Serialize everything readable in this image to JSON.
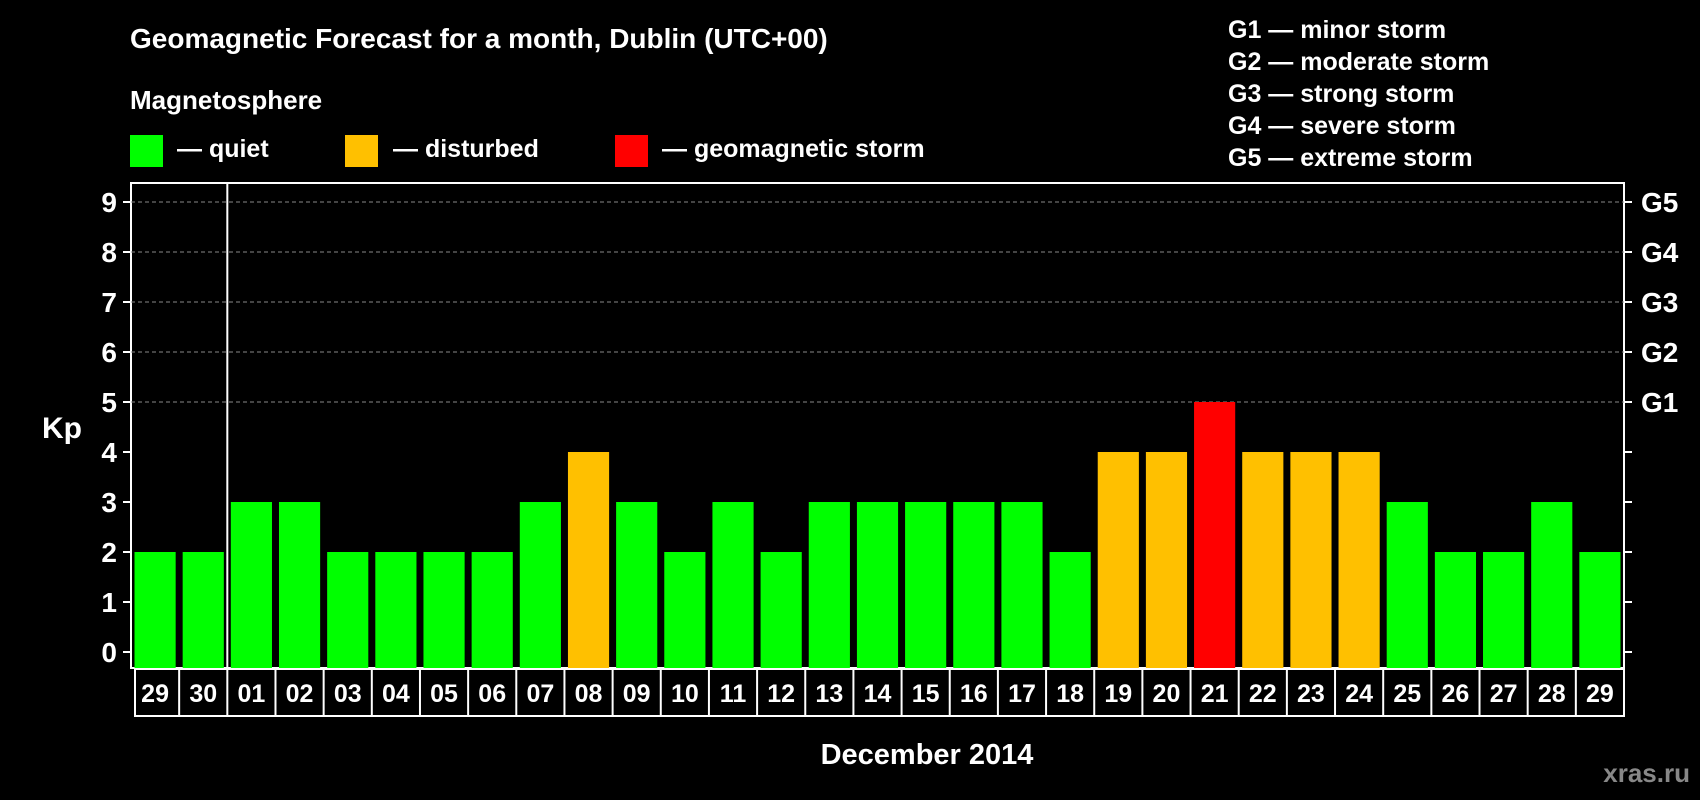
{
  "chart_data": {
    "type": "bar",
    "title": "Geomagnetic Forecast for a month, Dublin (UTC+00)",
    "legend_title": "Magnetosphere",
    "legend": [
      {
        "label": "— quiet",
        "color": "#00ff00"
      },
      {
        "label": "— disturbed",
        "color": "#ffc000"
      },
      {
        "label": "— geomagnetic storm",
        "color": "#ff0000"
      }
    ],
    "storm_scale": [
      "G1 — minor storm",
      "G2 — moderate storm",
      "G3 — strong storm",
      "G4 — severe storm",
      "G5 — extreme storm"
    ],
    "ylabel": "Kp",
    "xlabel": "December 2014",
    "ylim": [
      0,
      9
    ],
    "y_ticks": [
      "0",
      "1",
      "2",
      "3",
      "4",
      "5",
      "6",
      "7",
      "8",
      "9"
    ],
    "right_axis_labels": [
      {
        "value": 5,
        "label": "G1"
      },
      {
        "value": 6,
        "label": "G2"
      },
      {
        "value": 7,
        "label": "G3"
      },
      {
        "value": 8,
        "label": "G4"
      },
      {
        "value": 9,
        "label": "G5"
      }
    ],
    "categories": [
      "29",
      "30",
      "01",
      "02",
      "03",
      "04",
      "05",
      "06",
      "07",
      "08",
      "09",
      "10",
      "11",
      "12",
      "13",
      "14",
      "15",
      "16",
      "17",
      "18",
      "19",
      "20",
      "21",
      "22",
      "23",
      "24",
      "25",
      "26",
      "27",
      "28",
      "29"
    ],
    "values": [
      2,
      2,
      3,
      3,
      2,
      2,
      2,
      2,
      3,
      4,
      3,
      2,
      3,
      2,
      3,
      3,
      3,
      3,
      3,
      2,
      4,
      4,
      5,
      4,
      4,
      4,
      3,
      2,
      2,
      3,
      2
    ],
    "colors": {
      "quiet": "#00ff00",
      "disturbed": "#ffc000",
      "storm": "#ff0000"
    },
    "gridlines": "dashed at 5–9",
    "month_divider_after_index": 1
  },
  "watermark": "xras.ru"
}
